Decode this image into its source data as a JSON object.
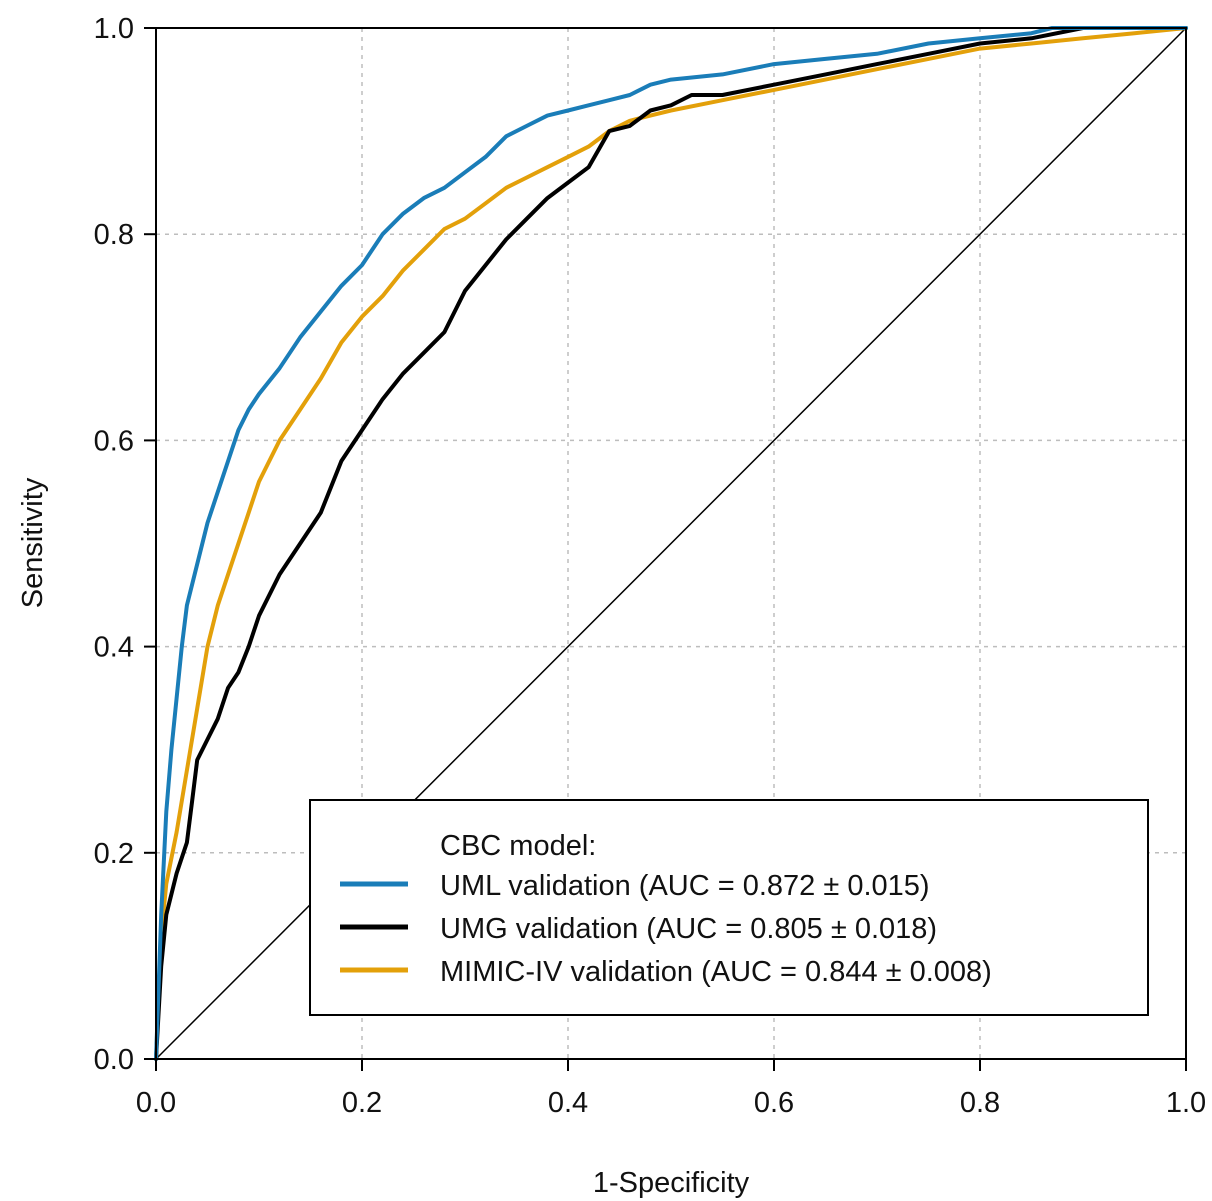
{
  "chart_data": {
    "type": "line",
    "xlabel": "1-Specificity",
    "ylabel": "Sensitivity",
    "xlim": [
      0,
      1
    ],
    "ylim": [
      0,
      1
    ],
    "x_ticks": [
      "0.0",
      "0.2",
      "0.4",
      "0.6",
      "0.8",
      "1.0"
    ],
    "y_ticks": [
      "0.0",
      "0.2",
      "0.4",
      "0.6",
      "0.8",
      "1.0"
    ],
    "grid": true,
    "legend": {
      "placement": "bottom-right",
      "title": "CBC model:"
    },
    "reference_line": {
      "x": [
        0,
        1
      ],
      "y": [
        0,
        1
      ]
    },
    "series": [
      {
        "name": "UML validation (AUC = 0.872 ± 0.015)",
        "color": "#1a7db8",
        "x": [
          0,
          0.005,
          0.01,
          0.015,
          0.02,
          0.025,
          0.03,
          0.04,
          0.05,
          0.06,
          0.07,
          0.08,
          0.09,
          0.1,
          0.12,
          0.14,
          0.16,
          0.18,
          0.2,
          0.22,
          0.24,
          0.26,
          0.28,
          0.3,
          0.32,
          0.34,
          0.36,
          0.38,
          0.4,
          0.42,
          0.44,
          0.46,
          0.48,
          0.5,
          0.55,
          0.6,
          0.65,
          0.7,
          0.75,
          0.8,
          0.85,
          0.87,
          0.9,
          1.0
        ],
        "y": [
          0,
          0.14,
          0.24,
          0.3,
          0.35,
          0.4,
          0.44,
          0.48,
          0.52,
          0.55,
          0.58,
          0.61,
          0.63,
          0.645,
          0.67,
          0.7,
          0.725,
          0.75,
          0.77,
          0.8,
          0.82,
          0.835,
          0.845,
          0.86,
          0.875,
          0.895,
          0.905,
          0.915,
          0.92,
          0.925,
          0.93,
          0.935,
          0.945,
          0.95,
          0.955,
          0.965,
          0.97,
          0.975,
          0.985,
          0.99,
          0.995,
          1.0,
          1.0,
          1.0
        ]
      },
      {
        "name": "UMG validation (AUC = 0.805 ± 0.018)",
        "color": "#000000",
        "x": [
          0,
          0.005,
          0.01,
          0.02,
          0.03,
          0.035,
          0.04,
          0.05,
          0.06,
          0.07,
          0.08,
          0.09,
          0.1,
          0.12,
          0.14,
          0.16,
          0.18,
          0.2,
          0.22,
          0.24,
          0.26,
          0.28,
          0.3,
          0.32,
          0.34,
          0.36,
          0.38,
          0.4,
          0.42,
          0.44,
          0.46,
          0.48,
          0.5,
          0.52,
          0.55,
          0.6,
          0.65,
          0.7,
          0.75,
          0.8,
          0.85,
          0.9,
          1.0
        ],
        "y": [
          0,
          0.09,
          0.14,
          0.18,
          0.21,
          0.25,
          0.29,
          0.31,
          0.33,
          0.36,
          0.375,
          0.4,
          0.43,
          0.47,
          0.5,
          0.53,
          0.58,
          0.61,
          0.64,
          0.665,
          0.685,
          0.705,
          0.745,
          0.77,
          0.795,
          0.815,
          0.835,
          0.85,
          0.865,
          0.9,
          0.905,
          0.92,
          0.925,
          0.935,
          0.935,
          0.945,
          0.955,
          0.965,
          0.975,
          0.985,
          0.99,
          1.0,
          1.0
        ]
      },
      {
        "name": "MIMIC-IV validation (AUC = 0.844 ± 0.008)",
        "color": "#e3a00a",
        "x": [
          0,
          0.005,
          0.01,
          0.02,
          0.03,
          0.04,
          0.05,
          0.06,
          0.07,
          0.08,
          0.09,
          0.1,
          0.12,
          0.14,
          0.16,
          0.18,
          0.2,
          0.22,
          0.24,
          0.26,
          0.28,
          0.3,
          0.32,
          0.34,
          0.36,
          0.38,
          0.4,
          0.42,
          0.44,
          0.46,
          0.48,
          0.5,
          0.55,
          0.6,
          0.65,
          0.7,
          0.75,
          0.8,
          0.85,
          0.9,
          0.95,
          1.0
        ],
        "y": [
          0,
          0.12,
          0.17,
          0.22,
          0.28,
          0.34,
          0.4,
          0.44,
          0.47,
          0.5,
          0.53,
          0.56,
          0.6,
          0.63,
          0.66,
          0.695,
          0.72,
          0.74,
          0.765,
          0.785,
          0.805,
          0.815,
          0.83,
          0.845,
          0.855,
          0.865,
          0.875,
          0.885,
          0.9,
          0.91,
          0.915,
          0.92,
          0.93,
          0.94,
          0.95,
          0.96,
          0.97,
          0.98,
          0.985,
          0.99,
          0.995,
          1.0
        ]
      }
    ]
  }
}
